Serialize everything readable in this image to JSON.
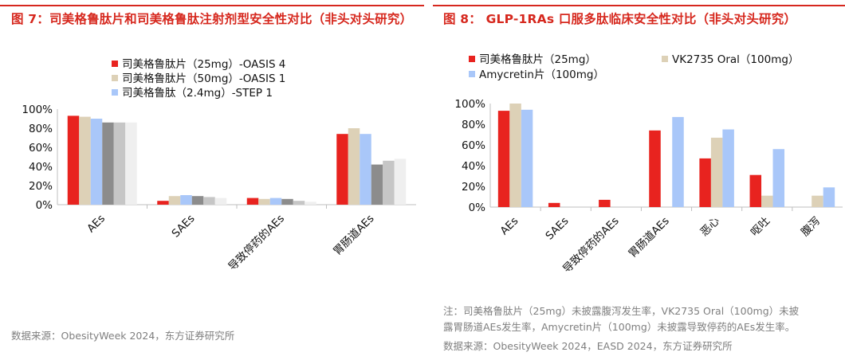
{
  "left": {
    "title": "图 7：司美格鲁肽片和司美格鲁肽注射剂型安全性对比（非头对头研究）",
    "source": "数据来源：ObesityWeek 2024，东方证券研究所",
    "chart_data": {
      "type": "bar",
      "categories": [
        "AEs",
        "SAEs",
        "导致停药的AEs",
        "胃肠道AEs"
      ],
      "ylim": [
        0,
        100
      ],
      "yticks": [
        "0%",
        "20%",
        "40%",
        "60%",
        "80%",
        "100%"
      ],
      "series": [
        {
          "name": "司美格鲁肽片（25mg）-OASIS 4",
          "color": "#e8231f",
          "values": [
            93,
            4,
            7,
            74
          ]
        },
        {
          "name": "司美格鲁肽片（50mg）-OASIS 1",
          "color": "#ddd1b7",
          "values": [
            92,
            9,
            6,
            80
          ]
        },
        {
          "name": "司美格鲁肽（2.4mg）-STEP 1",
          "color": "#a9c7f9",
          "values": [
            90,
            10,
            7,
            74
          ]
        },
        {
          "name": "",
          "color": "#8c8c8c",
          "values": [
            86,
            9,
            6,
            42
          ]
        },
        {
          "name": "",
          "color": "#c6c6c6",
          "values": [
            86,
            8,
            4,
            46
          ]
        },
        {
          "name": "",
          "color": "#efefef",
          "values": [
            86,
            7,
            3,
            48
          ]
        }
      ]
    }
  },
  "right": {
    "title": "图 8：  GLP-1RAs 口服多肽临床安全性对比（非头对头研究）",
    "note": [
      "注：司美格鲁肽片（25mg）未披露腹泻发生率，VK2735 Oral（100mg）未披",
      "露胃肠道AEs发生率，Amycretin片（100mg）未披露导致停药的AEs发生率。"
    ],
    "source": "数据来源：ObesityWeek 2024，EASD 2024，东方证券研究所",
    "chart_data": {
      "type": "bar",
      "categories": [
        "AEs",
        "SAEs",
        "导致停药的AEs",
        "胃肠道AEs",
        "恶心",
        "呕吐",
        "腹泻"
      ],
      "ylim": [
        0,
        100
      ],
      "yticks": [
        "0%",
        "20%",
        "40%",
        "60%",
        "80%",
        "100%"
      ],
      "series": [
        {
          "name": "司美格鲁肽片（25mg）",
          "color": "#e8231f",
          "values": [
            93,
            4,
            7,
            74,
            47,
            31,
            null
          ]
        },
        {
          "name": "VK2735 Oral（100mg）",
          "color": "#ddd1b7",
          "values": [
            100,
            0,
            0,
            null,
            67,
            11,
            11
          ]
        },
        {
          "name": "Amycretin片（100mg）",
          "color": "#a9c7f9",
          "values": [
            94,
            0,
            null,
            87,
            75,
            56,
            19
          ]
        }
      ]
    }
  }
}
